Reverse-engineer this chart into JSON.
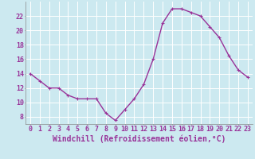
{
  "x": [
    0,
    1,
    2,
    3,
    4,
    5,
    6,
    7,
    8,
    9,
    10,
    11,
    12,
    13,
    14,
    15,
    16,
    17,
    18,
    19,
    20,
    21,
    22,
    23
  ],
  "y": [
    14,
    13,
    12,
    12,
    11,
    10.5,
    10.5,
    10.5,
    8.5,
    7.5,
    9,
    10.5,
    12.5,
    16,
    21,
    23,
    23,
    22.5,
    22,
    20.5,
    19,
    16.5,
    14.5,
    13.5
  ],
  "line_color": "#993399",
  "marker": "+",
  "marker_size": 3,
  "background_color": "#cce9f0",
  "grid_color": "#ffffff",
  "xlabel": "Windchill (Refroidissement éolien,°C)",
  "xlabel_fontsize": 7,
  "ylabel_ticks": [
    8,
    10,
    12,
    14,
    16,
    18,
    20,
    22
  ],
  "xtick_labels": [
    "0",
    "1",
    "2",
    "3",
    "4",
    "5",
    "6",
    "7",
    "8",
    "9",
    "10",
    "11",
    "12",
    "13",
    "14",
    "15",
    "16",
    "17",
    "18",
    "19",
    "20",
    "21",
    "22",
    "23"
  ],
  "ylim": [
    7,
    24
  ],
  "xlim": [
    -0.5,
    23.5
  ],
  "tick_fontsize": 6,
  "line_width": 1.0
}
